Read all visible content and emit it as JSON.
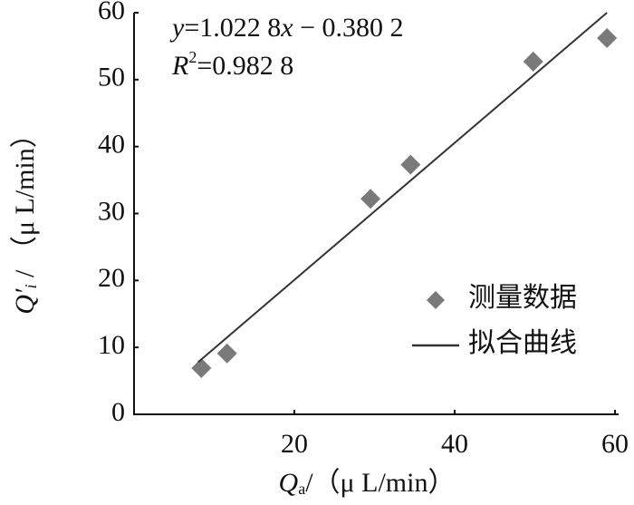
{
  "chart_data": {
    "type": "scatter",
    "x_label": [
      "Q",
      "a",
      "/（μ L/min）"
    ],
    "y_label": [
      "Q′",
      "i",
      " / （μ L/min）"
    ],
    "annotations": [
      [
        "y",
        "=1.022 8",
        "x",
        " − 0.380 2"
      ],
      [
        "R",
        "2",
        "=0.982 8"
      ]
    ],
    "series": [
      {
        "name": "测量数据",
        "type": "scatter",
        "color": "#7a7a7a",
        "x": [
          8.4,
          11.6,
          29.5,
          34.5,
          49.8,
          59
        ],
        "values": [
          6.9,
          9.1,
          32.2,
          37.3,
          52.7,
          56.2
        ]
      },
      {
        "name": "拟合曲线",
        "type": "line",
        "color": "#333333",
        "x": [
          8,
          59
        ],
        "values": [
          7.8,
          60
        ]
      }
    ],
    "xlim": [
      0,
      60
    ],
    "xticks": [
      20,
      40,
      60
    ],
    "ylim": [
      0,
      60
    ],
    "yticks": [
      0,
      10,
      20,
      30,
      40,
      50,
      60
    ],
    "legend": "right",
    "grid": false
  }
}
